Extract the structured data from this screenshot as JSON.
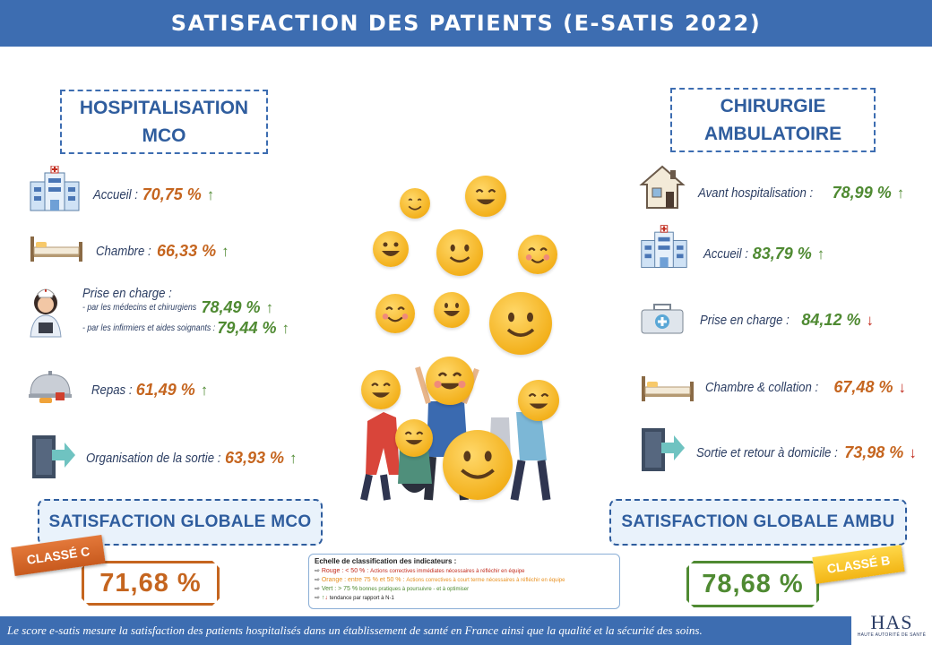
{
  "title": "SATISFACTION DES PATIENTS (E-SATIS 2022)",
  "mco": {
    "heading_line1": "HOSPITALISATION",
    "heading_line2": "MCO",
    "items": [
      {
        "label": "Accueil :",
        "value": "70,75 %",
        "trend": "up",
        "color": "orange"
      },
      {
        "label": "Chambre :",
        "value": "66,33 %",
        "trend": "up",
        "color": "orange"
      },
      {
        "label": "Repas :",
        "value": "61,49 %",
        "trend": "up",
        "color": "orange"
      },
      {
        "label": "Organisation de la sortie :",
        "value": "63,93 %",
        "trend": "up",
        "color": "orange"
      }
    ],
    "prise_en_charge": {
      "label": "Prise en charge :",
      "sub1_label": "- par les médecins et chirurgiens",
      "sub1_value": "78,49 %",
      "sub2_label": "- par les infirmiers et aides soignants :",
      "sub2_value": "79,44 %"
    },
    "global_label": "SATISFACTION GLOBALE MCO",
    "class_badge": "CLASSÉ C",
    "global_score": "71,68 %"
  },
  "ambu": {
    "heading_line1": "CHIRURGIE",
    "heading_line2": "AMBULATOIRE",
    "items": [
      {
        "label": "Avant hospitalisation :",
        "value": "78,99 %",
        "trend": "up",
        "color": "green"
      },
      {
        "label": "Accueil :",
        "value": "83,79 %",
        "trend": "up",
        "color": "green"
      },
      {
        "label": "Prise en charge :",
        "value": "84,12 %",
        "trend": "down",
        "color": "green"
      },
      {
        "label": "Chambre & collation :",
        "value": "67,48 %",
        "trend": "down",
        "color": "orange"
      },
      {
        "label": "Sortie et retour à domicile :",
        "value": "73,98 %",
        "trend": "down",
        "color": "orange"
      }
    ],
    "global_label": "SATISFACTION GLOBALE AMBU",
    "class_badge": "CLASSÉ B",
    "global_score": "78,68 %"
  },
  "legend": {
    "title": "Echelle de classification des indicateurs :",
    "red_label": "Rouge : < 50 % :",
    "red_text": "Actions correctives immédiates nécessaires à réfléchir en équipe",
    "orange_label": "Orange : entre 75 % et 50 % :",
    "orange_text": "Actions correctives à court terme nécessaires à réfléchir en équipe",
    "green_label": "Vert : > 75 %",
    "green_text": "bonnes pratiques à poursuivre - et à optimiser",
    "trend_text": "tendance par rapport à N-1"
  },
  "footer": "Le score e-satis mesure la satisfaction des patients hospitalisés dans un établissement de santé en France ainsi que la qualité et la sécurité des soins.",
  "logo": {
    "name": "HAS",
    "subtitle": "HAUTE AUTORITÉ DE SANTÉ"
  },
  "colors": {
    "brand_blue": "#3d6db1",
    "orange": "#c5651f",
    "green": "#4f8a32",
    "red": "#c22b1d"
  }
}
